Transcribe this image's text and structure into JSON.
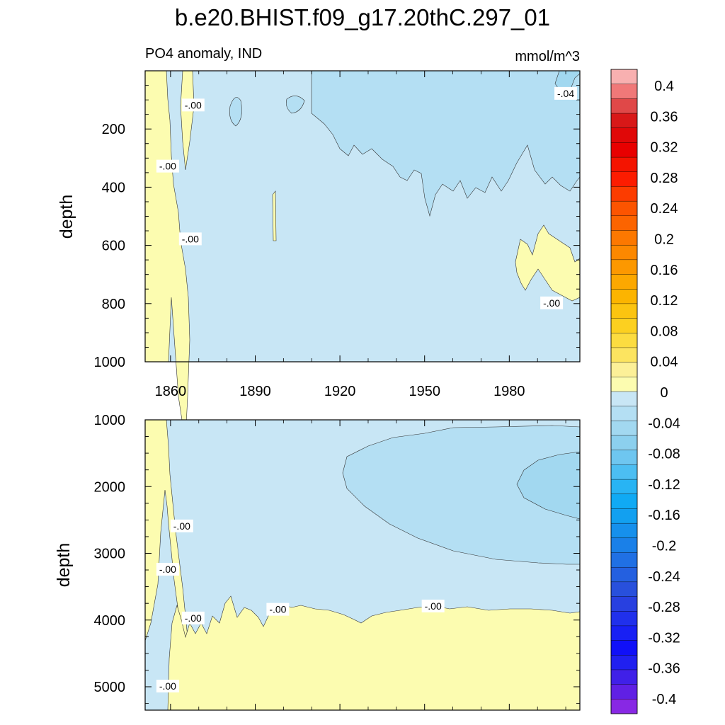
{
  "chart_data": {
    "type": "contour",
    "title": "b.e20.BHIST.f09_g17.20thC.297_01",
    "variable_label": "PO4 anomaly, IND",
    "units": "mmol/m^3",
    "x_axis": {
      "ticks": [
        1860,
        1890,
        1920,
        1950,
        1980
      ],
      "range": [
        1851,
        2005
      ]
    },
    "panels": [
      {
        "name": "upper",
        "ylabel": "depth",
        "y_range": [
          0,
          1000
        ],
        "y_ticks": [
          200,
          400,
          600,
          800,
          1000
        ],
        "contour_labels": [
          "-.00",
          "-.00",
          "-.00",
          "-.04",
          "-.00"
        ],
        "contour_labels_x": [
          1868,
          1859,
          1867,
          2000,
          1995
        ],
        "contour_labels_y": [
          120,
          330,
          580,
          80,
          800
        ]
      },
      {
        "name": "lower",
        "ylabel": "depth",
        "y_range": [
          1000,
          5350
        ],
        "y_ticks": [
          1000,
          2000,
          3000,
          4000,
          5000
        ],
        "contour_labels": [
          "-.00",
          "-.00",
          "-.00",
          "-.00",
          "-.00",
          "-.00"
        ],
        "contour_labels_x": [
          1864,
          1859,
          1868,
          1898,
          1953,
          1859
        ],
        "contour_labels_y": [
          2600,
          3250,
          3980,
          3850,
          3800,
          5000
        ]
      }
    ],
    "colorbar": {
      "labels": [
        "0.4",
        "0.36",
        "0.32",
        "0.28",
        "0.24",
        "0.2",
        "0.16",
        "0.12",
        "0.08",
        "0.04",
        "0",
        "-0.04",
        "-0.08",
        "-0.12",
        "-0.16",
        "-0.2",
        "-0.24",
        "-0.28",
        "-0.32",
        "-0.36",
        "-0.4"
      ],
      "colors": [
        "#f8b0b0",
        "#f07878",
        "#e04848",
        "#d81818",
        "#e00808",
        "#e80000",
        "#f41400",
        "#fc1c00",
        "#fc3c00",
        "#fc5400",
        "#fc6400",
        "#fc7800",
        "#fc8800",
        "#fc9800",
        "#fca800",
        "#fcb400",
        "#fcc410",
        "#fcd020",
        "#fcdc40",
        "#fce460",
        "#fcf098",
        "#fcfcb0",
        "#c8e6f5",
        "#b4dff3",
        "#a2d8f0",
        "#8cd0ee",
        "#6ec6f0",
        "#4cbef2",
        "#28b4f4",
        "#10aaf4",
        "#12a0f0",
        "#1690ec",
        "#1a80e8",
        "#2070e4",
        "#2460e0",
        "#2850dc",
        "#2840e0",
        "#2030ec",
        "#1820f4",
        "#1010f8",
        "#2020f0",
        "#4020e8",
        "#6020e4",
        "#8828e4"
      ]
    }
  }
}
